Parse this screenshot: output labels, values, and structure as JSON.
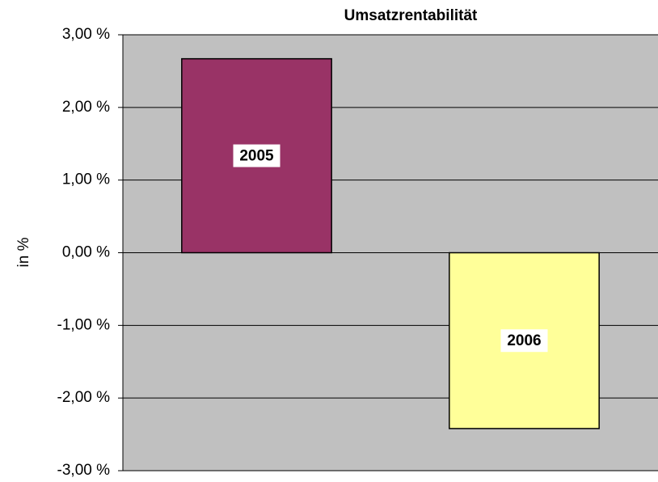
{
  "chart_data": {
    "type": "bar",
    "title": "Umsatzrentabilität",
    "y_label": "in %",
    "categories": [
      "2005",
      "2006"
    ],
    "values": [
      2.67,
      -2.42
    ],
    "colors": [
      "#993366",
      "#ffff99"
    ],
    "ylim": [
      -3,
      3
    ],
    "yticks": [
      {
        "value": -3,
        "label": "-3,00 %"
      },
      {
        "value": -2,
        "label": "-2,00 %"
      },
      {
        "value": -1,
        "label": "-1,00 %"
      },
      {
        "value": 0,
        "label": "0,00 %"
      },
      {
        "value": 1,
        "label": "1,00 %"
      },
      {
        "value": 2,
        "label": "2,00 %"
      },
      {
        "value": 3,
        "label": "3,00 %"
      }
    ],
    "grid": true
  }
}
